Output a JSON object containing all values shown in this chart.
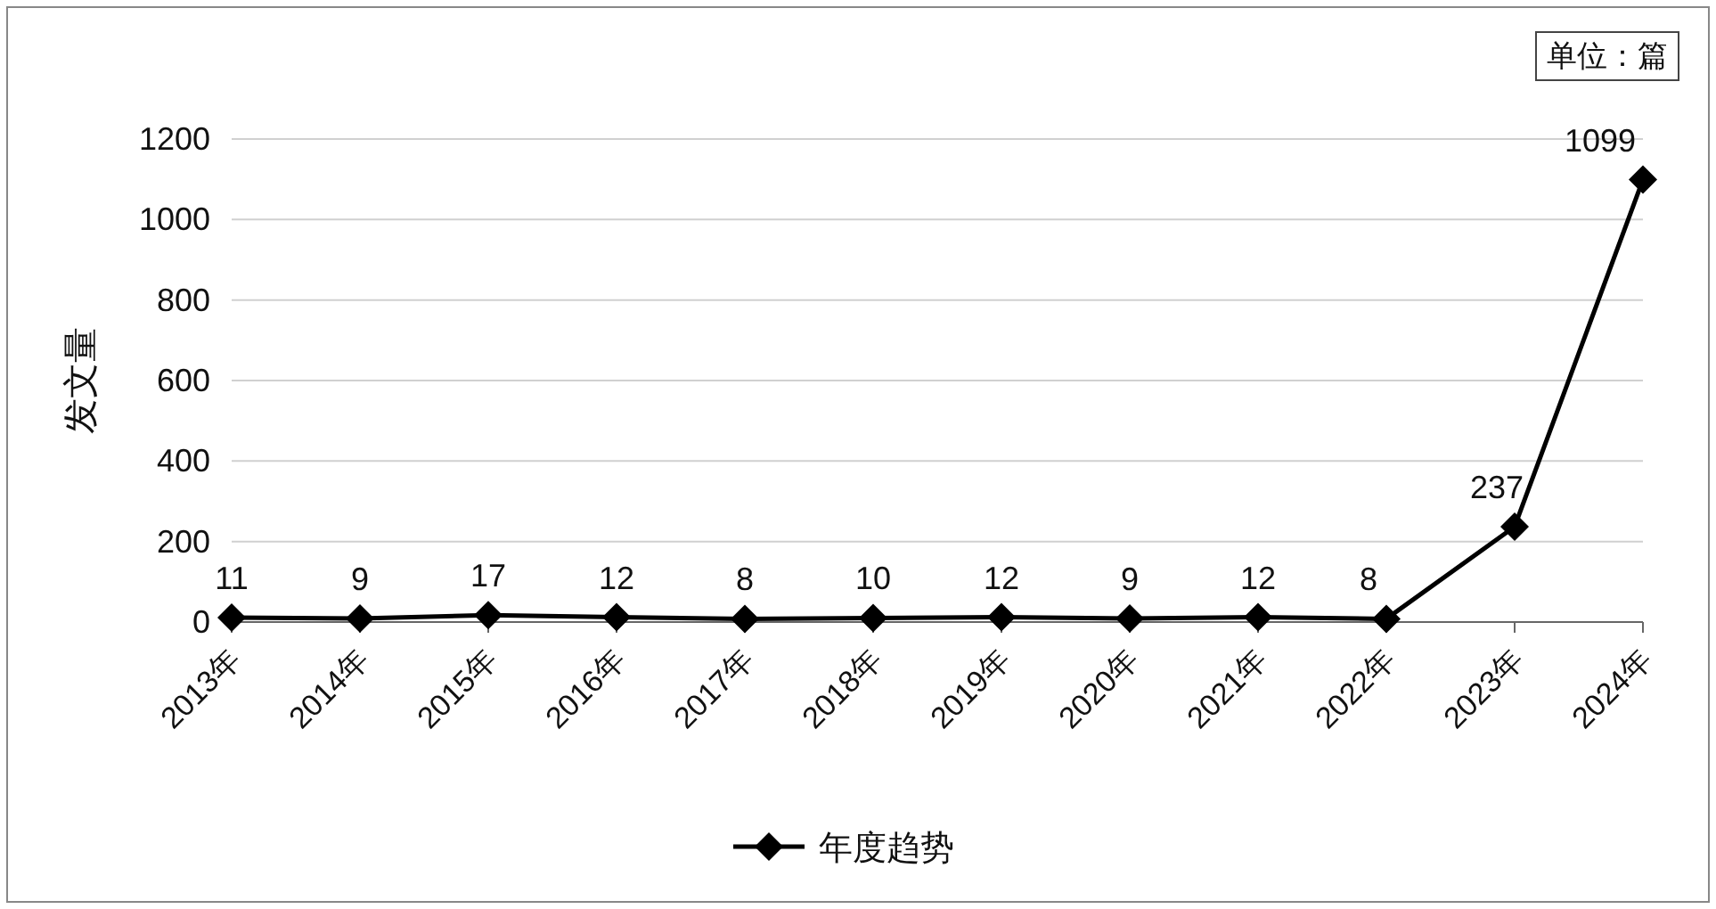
{
  "chart_data": {
    "type": "line",
    "ylabel": "发文量",
    "annotations": [
      "单位：篇"
    ],
    "categories": [
      "2013年",
      "2014年",
      "2015年",
      "2016年",
      "2017年",
      "2018年",
      "2019年",
      "2020年",
      "2021年",
      "2022年",
      "2023年",
      "2024年"
    ],
    "series": [
      {
        "name": "年度趋势",
        "color": "#000000",
        "values": [
          11,
          9,
          17,
          12,
          8,
          10,
          12,
          9,
          12,
          8,
          237,
          1099
        ]
      }
    ],
    "ylim": [
      0,
      1200
    ],
    "yticks": [
      0,
      200,
      400,
      600,
      800,
      1000,
      1200
    ],
    "grid": "y",
    "legend": "bottom",
    "marker": "diamond",
    "line_style": "solid",
    "data_labels": true
  }
}
